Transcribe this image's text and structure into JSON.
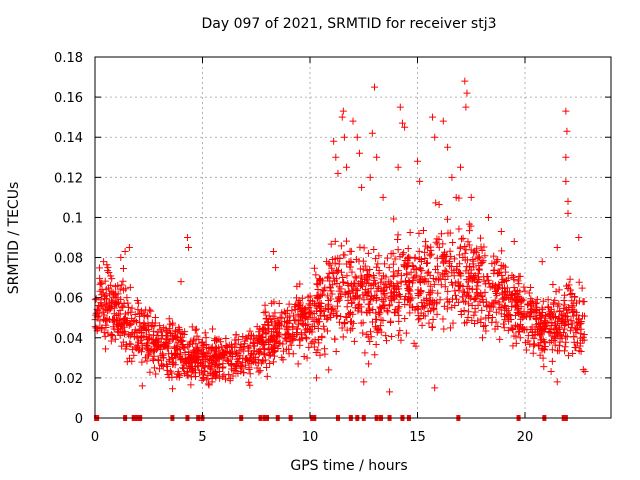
{
  "chart_data": {
    "type": "scatter",
    "title": "Day 097 of 2021, SRMTID for receiver stj3",
    "xlabel": "GPS time / hours",
    "ylabel": "SRMTID / TECUs",
    "xlim": [
      0,
      24
    ],
    "ylim": [
      0,
      0.18
    ],
    "grid": true,
    "marker": "+",
    "color": "#ff0000",
    "xticks": [
      0,
      5,
      10,
      15,
      20
    ],
    "xtick_labels": [
      "0",
      "5",
      "10",
      "15",
      "20"
    ],
    "yticks": [
      0,
      0.02,
      0.04,
      0.06,
      0.08,
      0.1,
      0.12,
      0.14,
      0.16,
      0.18
    ],
    "ytick_labels": [
      "0",
      "0.02",
      "0.04",
      "0.06",
      "0.08",
      "0.1",
      "0.12",
      "0.14",
      "0.16",
      "0.18"
    ],
    "zero_x": [
      0.05,
      0.1,
      1.4,
      1.8,
      1.9,
      2.0,
      2.1,
      3.6,
      4.3,
      4.8,
      5.0,
      6.8,
      7.7,
      7.9,
      8.0,
      8.5,
      9.1,
      10.1,
      10.2,
      11.3,
      11.9,
      12.2,
      12.5,
      13.1,
      13.3,
      13.7,
      14.3,
      14.6,
      16.9,
      19.7,
      20.9,
      21.8,
      21.9
    ],
    "series_profile": {
      "hours": [
        0,
        1,
        2,
        3,
        4,
        5,
        6,
        7,
        8,
        9,
        10,
        11,
        12,
        13,
        14,
        15,
        16,
        17,
        18,
        19,
        20,
        21,
        22,
        22.8
      ],
      "typical": [
        0.058,
        0.052,
        0.045,
        0.035,
        0.032,
        0.03,
        0.03,
        0.03,
        0.04,
        0.045,
        0.05,
        0.06,
        0.065,
        0.06,
        0.065,
        0.065,
        0.07,
        0.07,
        0.065,
        0.06,
        0.05,
        0.045,
        0.05,
        0.045
      ],
      "spread": [
        0.015,
        0.015,
        0.013,
        0.012,
        0.011,
        0.01,
        0.01,
        0.01,
        0.013,
        0.014,
        0.016,
        0.02,
        0.02,
        0.02,
        0.02,
        0.022,
        0.022,
        0.022,
        0.02,
        0.018,
        0.015,
        0.015,
        0.017,
        0.015
      ],
      "points_per_hour": 95
    },
    "highlights": [
      {
        "x": 0.4,
        "y": 0.078
      },
      {
        "x": 0.6,
        "y": 0.075
      },
      {
        "x": 1.2,
        "y": 0.08
      },
      {
        "x": 1.6,
        "y": 0.085
      },
      {
        "x": 1.4,
        "y": 0.083
      },
      {
        "x": 4.3,
        "y": 0.09
      },
      {
        "x": 4.35,
        "y": 0.085
      },
      {
        "x": 4.0,
        "y": 0.068
      },
      {
        "x": 8.3,
        "y": 0.083
      },
      {
        "x": 8.4,
        "y": 0.075
      },
      {
        "x": 11.1,
        "y": 0.138
      },
      {
        "x": 11.2,
        "y": 0.13
      },
      {
        "x": 11.3,
        "y": 0.122
      },
      {
        "x": 11.5,
        "y": 0.15
      },
      {
        "x": 11.55,
        "y": 0.153
      },
      {
        "x": 11.6,
        "y": 0.14
      },
      {
        "x": 11.7,
        "y": 0.125
      },
      {
        "x": 12.0,
        "y": 0.148
      },
      {
        "x": 12.2,
        "y": 0.14
      },
      {
        "x": 12.3,
        "y": 0.132
      },
      {
        "x": 12.4,
        "y": 0.115
      },
      {
        "x": 13.0,
        "y": 0.165
      },
      {
        "x": 12.9,
        "y": 0.142
      },
      {
        "x": 13.1,
        "y": 0.13
      },
      {
        "x": 12.8,
        "y": 0.12
      },
      {
        "x": 14.2,
        "y": 0.155
      },
      {
        "x": 14.3,
        "y": 0.147
      },
      {
        "x": 14.4,
        "y": 0.145
      },
      {
        "x": 14.1,
        "y": 0.125
      },
      {
        "x": 13.4,
        "y": 0.11
      },
      {
        "x": 15.0,
        "y": 0.128
      },
      {
        "x": 15.1,
        "y": 0.118
      },
      {
        "x": 15.7,
        "y": 0.15
      },
      {
        "x": 15.8,
        "y": 0.14
      },
      {
        "x": 16.2,
        "y": 0.148
      },
      {
        "x": 16.4,
        "y": 0.135
      },
      {
        "x": 16.6,
        "y": 0.12
      },
      {
        "x": 17.2,
        "y": 0.168
      },
      {
        "x": 17.3,
        "y": 0.162
      },
      {
        "x": 17.25,
        "y": 0.155
      },
      {
        "x": 17.0,
        "y": 0.125
      },
      {
        "x": 16.8,
        "y": 0.11
      },
      {
        "x": 17.5,
        "y": 0.11
      },
      {
        "x": 18.3,
        "y": 0.1
      },
      {
        "x": 18.9,
        "y": 0.093
      },
      {
        "x": 19.5,
        "y": 0.088
      },
      {
        "x": 20.8,
        "y": 0.078
      },
      {
        "x": 21.5,
        "y": 0.085
      },
      {
        "x": 21.9,
        "y": 0.153
      },
      {
        "x": 21.95,
        "y": 0.143
      },
      {
        "x": 21.9,
        "y": 0.13
      },
      {
        "x": 21.9,
        "y": 0.118
      },
      {
        "x": 22.0,
        "y": 0.108
      },
      {
        "x": 22.0,
        "y": 0.102
      },
      {
        "x": 22.5,
        "y": 0.09
      },
      {
        "x": 22.7,
        "y": 0.058
      },
      {
        "x": 13.7,
        "y": 0.013
      },
      {
        "x": 10.3,
        "y": 0.02
      },
      {
        "x": 15.8,
        "y": 0.015
      },
      {
        "x": 8.3,
        "y": 0.028
      },
      {
        "x": 12.5,
        "y": 0.018
      },
      {
        "x": 21.5,
        "y": 0.018
      },
      {
        "x": 2.2,
        "y": 0.016
      }
    ]
  }
}
